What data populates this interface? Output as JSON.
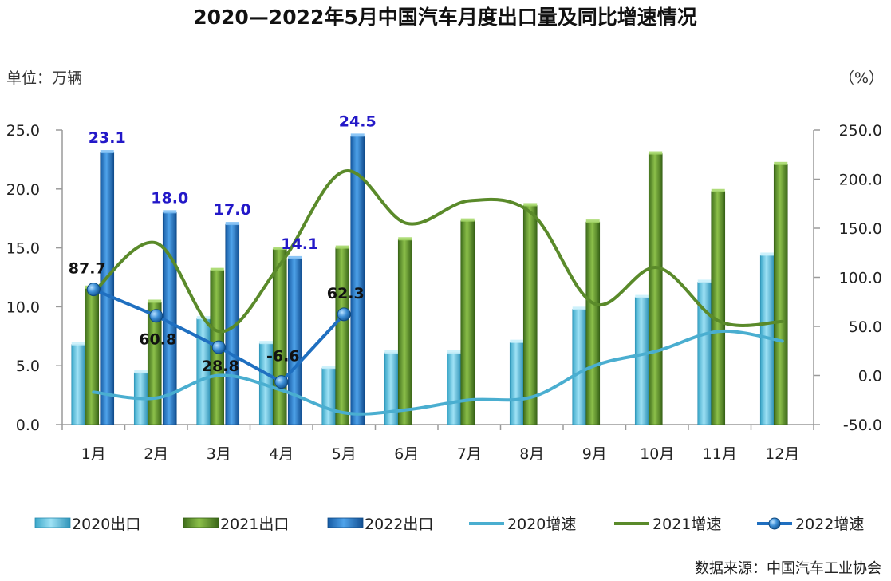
{
  "chart_data": {
    "type": "bar",
    "title": "2020—2022年5月中国汽车月度出口量及同比增速情况",
    "left_unit": "单位：万辆",
    "right_unit": "（%）",
    "source": "数据来源：中国汽车工业协会",
    "categories": [
      "1月",
      "2月",
      "3月",
      "4月",
      "5月",
      "6月",
      "7月",
      "8月",
      "9月",
      "10月",
      "11月",
      "12月"
    ],
    "y_left": {
      "min": 0,
      "max": 25,
      "ticks": [
        "0.0",
        "5.0",
        "10.0",
        "15.0",
        "20.0",
        "25.0"
      ]
    },
    "y_right": {
      "min": -50,
      "max": 250,
      "ticks": [
        "-50.0",
        "0.0",
        "50.0",
        "100.0",
        "150.0",
        "200.0",
        "250.0"
      ]
    },
    "grid": false,
    "legend_position": "bottom",
    "bar_series": [
      {
        "name": "2020出口",
        "color": "#5bc0de",
        "values": [
          6.8,
          4.4,
          9.0,
          6.9,
          4.8,
          6.1,
          6.1,
          7.0,
          9.8,
          10.8,
          12.1,
          14.4
        ]
      },
      {
        "name": "2021出口",
        "color": "#5a8a2a",
        "values": [
          11.6,
          10.4,
          13.1,
          14.9,
          15.0,
          15.7,
          17.3,
          18.6,
          17.2,
          23.0,
          19.8,
          22.1
        ]
      },
      {
        "name": "2022出口",
        "color": "#1f6fc0",
        "values": [
          23.1,
          18.0,
          17.0,
          14.1,
          24.5
        ],
        "labels": [
          "23.1",
          "18.0",
          "17.0",
          "14.1",
          "24.5"
        ]
      }
    ],
    "line_series": [
      {
        "name": "2020增速",
        "color": "#4aaed0",
        "axis": "right",
        "values": [
          -17,
          -23,
          0,
          -15,
          -38,
          -35,
          -25,
          -22,
          10,
          25,
          45,
          35
        ]
      },
      {
        "name": "2021增速",
        "color": "#5a8a2a",
        "axis": "right",
        "values": [
          85,
          135,
          45,
          115,
          208,
          155,
          178,
          165,
          73,
          110,
          55,
          55
        ]
      },
      {
        "name": "2022增速",
        "color": "#1f6fc0",
        "axis": "right",
        "markers": true,
        "values": [
          87.7,
          60.8,
          28.8,
          -6.6,
          62.3
        ],
        "labels": [
          "87.7",
          "60.8",
          "28.8",
          "-6.6",
          "62.3"
        ]
      }
    ]
  }
}
